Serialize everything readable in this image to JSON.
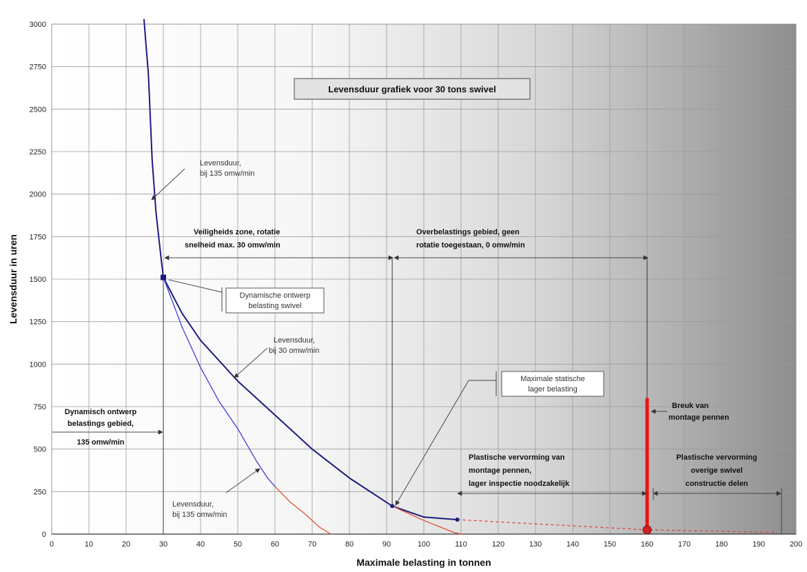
{
  "chart_data": {
    "type": "line",
    "title": "Levensduur grafiek voor 30 tons swivel",
    "xlabel": "Maximale belasting in tonnen",
    "ylabel": "Levensduur in uren",
    "xlim": [
      0,
      200
    ],
    "ylim": [
      0,
      3000
    ],
    "x_ticks": [
      "0",
      "10",
      "20",
      "30",
      "40",
      "50",
      "60",
      "70",
      "80",
      "90",
      "100",
      "110",
      "120",
      "130",
      "140",
      "150",
      "160",
      "170",
      "180",
      "190",
      "200"
    ],
    "y_ticks": [
      "0",
      "250",
      "500",
      "750",
      "1000",
      "1250",
      "1500",
      "1750",
      "2000",
      "2250",
      "2500",
      "2750",
      "3000"
    ],
    "grid": true,
    "background": "gradient white to grey (left to right)",
    "series": [
      {
        "key": "bij30",
        "color": "#1a1a80",
        "points": [
          [
            24.8,
            3080
          ],
          [
            26,
            2700
          ],
          [
            27,
            2200
          ],
          [
            28,
            1900
          ],
          [
            29,
            1700
          ],
          [
            30,
            1510
          ],
          [
            35,
            1300
          ],
          [
            40,
            1140
          ],
          [
            50,
            900
          ],
          [
            60,
            700
          ],
          [
            70,
            500
          ],
          [
            80,
            330
          ],
          [
            91.5,
            165
          ],
          [
            100,
            100
          ],
          [
            109,
            85
          ]
        ]
      },
      {
        "key": "bij135",
        "color": "#3b3bd9",
        "points": [
          [
            30,
            1510
          ],
          [
            35,
            1220
          ],
          [
            40,
            980
          ],
          [
            45,
            780
          ],
          [
            50,
            620
          ],
          [
            55,
            430
          ],
          [
            58,
            330
          ],
          [
            60,
            280
          ]
        ]
      },
      {
        "key": "bij135_ext",
        "color": "#e05030",
        "points": [
          [
            60,
            280
          ],
          [
            64,
            190
          ],
          [
            68,
            120
          ],
          [
            72,
            40
          ],
          [
            75,
            0
          ]
        ]
      },
      {
        "key": "bij30_ext",
        "color": "#e05030",
        "points": [
          [
            91.5,
            165
          ],
          [
            96,
            120
          ],
          [
            100,
            80
          ],
          [
            104,
            45
          ],
          [
            108,
            10
          ],
          [
            110,
            0
          ]
        ]
      },
      {
        "key": "dashed_ext",
        "color": "#e04040",
        "dashed": true,
        "points": [
          [
            109,
            85
          ],
          [
            130,
            60
          ],
          [
            160,
            25
          ],
          [
            195,
            10
          ]
        ]
      }
    ],
    "markers": [
      {
        "x": 30,
        "y": 1510,
        "shape": "square",
        "color": "#1a1a80"
      },
      {
        "x": 91.5,
        "y": 165,
        "shape": "dot",
        "color": "#1a1a80"
      },
      {
        "x": 109,
        "y": 85,
        "shape": "dot",
        "color": "#1a1a80"
      },
      {
        "x": 160,
        "y": 25,
        "shape": "circle",
        "color": "#d02020"
      }
    ],
    "break_bar": {
      "x": 160,
      "y_from": 0,
      "y_to": 800,
      "color": "#ee1111"
    },
    "vertical_lines": [
      {
        "x": 30,
        "y_from": 0,
        "y_to": 1510
      },
      {
        "x": 91.5,
        "y_from": 165,
        "y_to": 1630
      },
      {
        "x": 160,
        "y_from": 0,
        "y_to": 1630
      }
    ],
    "annotations": {
      "levensduur135_top": [
        "Levensduur,",
        "bij 135 omw/min"
      ],
      "levensduur30": [
        "Levensduur,",
        "bij 30 omw/min"
      ],
      "levensduur135_bottom": [
        "Levensduur,",
        "bij 135 omw/min"
      ],
      "veiligheids": [
        "Veiligheids zone, rotatie",
        "snelheid max. 30   omw/min"
      ],
      "overbelastings": [
        "Overbelastings gebied, geen",
        "rotatie toegestaan, 0 omw/min"
      ],
      "dynamische_ontwerp": [
        "Dynamische ontwerp",
        "belasting swivel"
      ],
      "maximale_statische": [
        "Maximale statische",
        "lager belasting"
      ],
      "dynamisch_gebied": [
        "Dynamisch ontwerp",
        "belastings gebied,",
        "135 omw/min"
      ],
      "breuk": [
        "Breuk van",
        "montage pennen"
      ],
      "plastische1": [
        "Plastische vervorming van",
        "montage pennen,",
        "lager inspectie noodzakelijk"
      ],
      "plastische2": [
        "Plastische vervorming",
        "overige swivel",
        "constructie delen"
      ]
    }
  }
}
